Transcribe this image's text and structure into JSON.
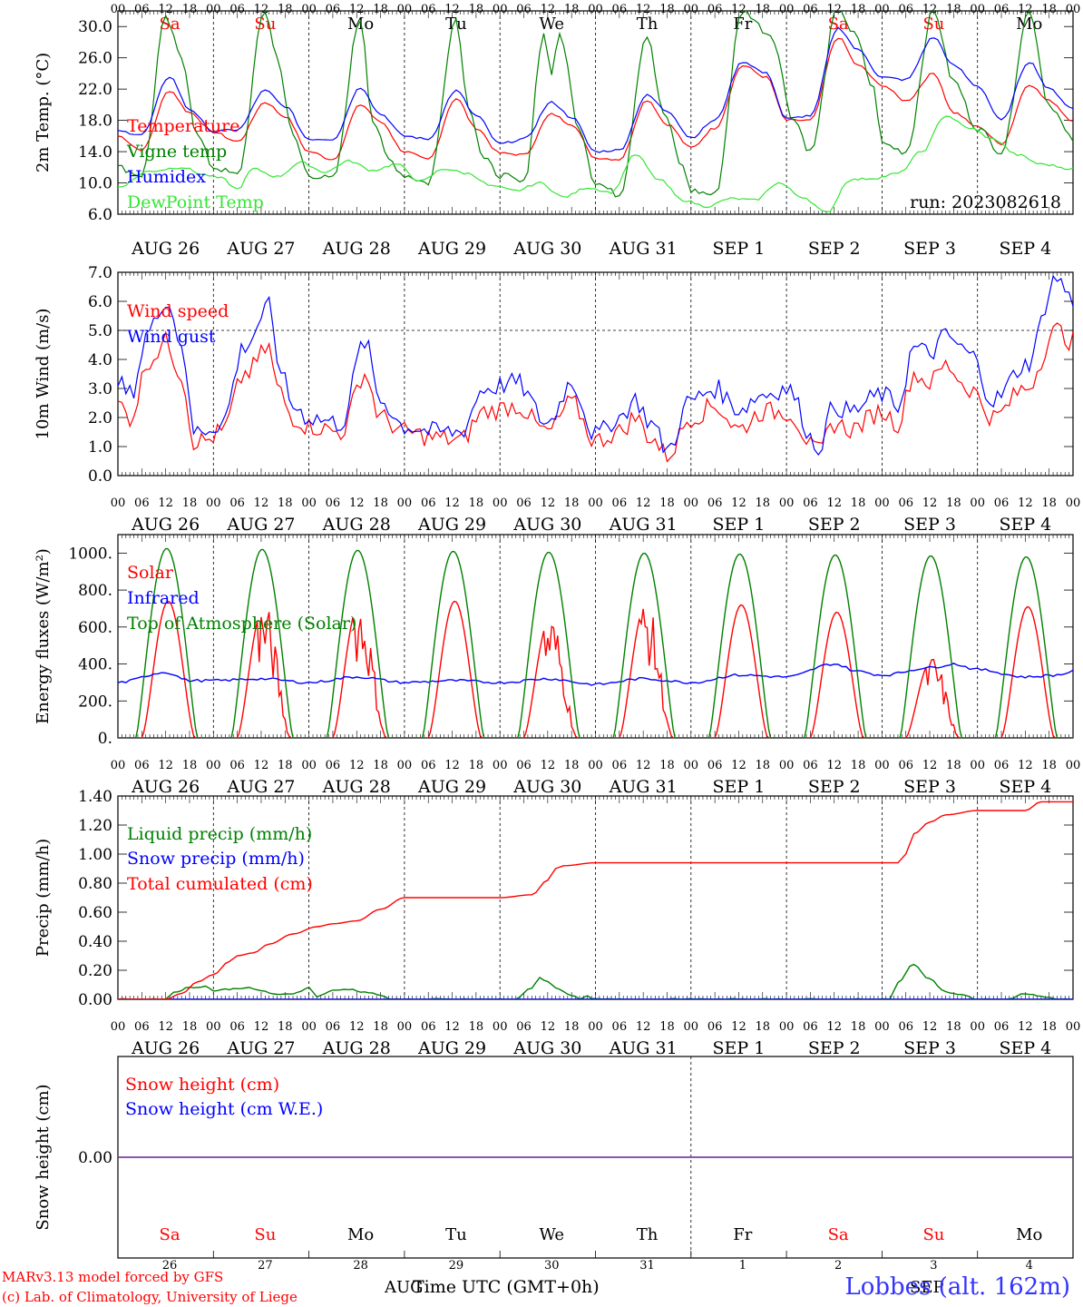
{
  "run_label": "run: 2023082618",
  "footer": {
    "model_line": "MARv3.13 model forced by GFS",
    "copyright_line": "(c) Lab. of Climatology, University of Liege",
    "xlabel": "Time UTC (GMT+0h)",
    "station": "Lobbes (alt. 162m)",
    "month_left": "AUG",
    "month_right": "SEP"
  },
  "colors": {
    "red": "#ff0000",
    "blue": "#0000ff",
    "green": "#008000",
    "lightgreen": "#33e633",
    "purple": "#7f3f9f"
  },
  "days": [
    {
      "weekday": "Sa",
      "weekend": true,
      "month": "AUG",
      "day": "26"
    },
    {
      "weekday": "Su",
      "weekend": true,
      "month": "AUG",
      "day": "27"
    },
    {
      "weekday": "Mo",
      "weekend": false,
      "month": "AUG",
      "day": "28"
    },
    {
      "weekday": "Tu",
      "weekend": false,
      "month": "AUG",
      "day": "29"
    },
    {
      "weekday": "We",
      "weekend": false,
      "month": "AUG",
      "day": "30"
    },
    {
      "weekday": "Th",
      "weekend": false,
      "month": "AUG",
      "day": "31"
    },
    {
      "weekday": "Fr",
      "weekend": false,
      "month": "SEP",
      "day": "1"
    },
    {
      "weekday": "Sa",
      "weekend": true,
      "month": "SEP",
      "day": "2"
    },
    {
      "weekday": "Su",
      "weekend": true,
      "month": "SEP",
      "day": "3"
    },
    {
      "weekday": "Mo",
      "weekend": false,
      "month": "SEP",
      "day": "4"
    }
  ],
  "hour_ticks": [
    "00",
    "06",
    "12",
    "18"
  ],
  "chart_data": [
    {
      "type": "line",
      "id": "temp",
      "ylabel": "2m Temp. (°C)",
      "ylim": [
        6,
        32
      ],
      "yticks": [
        "6.0",
        "10.0",
        "14.0",
        "18.0",
        "22.0",
        "26.0",
        "30.0"
      ],
      "x_unit": "hours since Aug 26 00 UTC",
      "series": [
        {
          "name": "Temperature",
          "color": "#ff0000",
          "x": [
            0,
            6,
            13,
            18,
            24,
            30,
            37,
            42,
            48,
            54,
            61,
            66,
            72,
            78,
            85,
            90,
            96,
            102,
            109,
            114,
            120,
            126,
            133,
            138,
            144,
            150,
            157,
            163,
            168,
            174,
            181,
            186,
            192,
            198,
            205,
            210,
            216,
            222,
            229,
            234,
            240
          ],
          "y": [
            16,
            14.2,
            21.8,
            19,
            16.5,
            15.3,
            20.3,
            18.5,
            14,
            13,
            20,
            17.8,
            14,
            13,
            20.8,
            17,
            13.8,
            13.6,
            18.8,
            17.5,
            13.2,
            13,
            20.6,
            17.5,
            14.5,
            17,
            25,
            23.5,
            18,
            18,
            28.6,
            25,
            22.5,
            20.5,
            24,
            19,
            17.2,
            15,
            22.6,
            20.5,
            18
          ]
        },
        {
          "name": "Vigne temp",
          "color": "#008000",
          "x": [
            0,
            6,
            12,
            16,
            20,
            24,
            30,
            37,
            40,
            44,
            48,
            54,
            61,
            64,
            68,
            72,
            78,
            85,
            88,
            92,
            96,
            102,
            107,
            109,
            111,
            116,
            120,
            126,
            133,
            137,
            142,
            144,
            150,
            157,
            164,
            170,
            174,
            181,
            185,
            190,
            192,
            198,
            205,
            210,
            216,
            222,
            229,
            234,
            240
          ],
          "y": [
            12,
            11,
            31,
            26,
            16,
            12,
            11,
            32,
            26,
            16,
            11,
            10.5,
            31,
            18,
            13,
            11,
            10,
            31,
            20,
            13,
            11,
            10,
            29,
            24,
            29,
            17,
            10,
            8.5,
            29,
            19,
            12,
            9,
            8.5,
            32,
            29,
            18,
            14,
            32.5,
            29,
            22,
            15,
            14,
            32,
            23,
            17,
            14,
            32,
            20,
            15.5
          ]
        },
        {
          "name": "Humidex",
          "color": "#0000ff",
          "x": [
            0,
            6,
            13,
            18,
            24,
            30,
            37,
            42,
            48,
            54,
            61,
            66,
            72,
            78,
            85,
            90,
            96,
            102,
            109,
            114,
            120,
            126,
            133,
            138,
            144,
            150,
            157,
            163,
            168,
            174,
            181,
            186,
            192,
            198,
            205,
            210,
            216,
            222,
            229,
            234,
            240
          ],
          "y": [
            16.6,
            16.2,
            23.6,
            19.4,
            16.6,
            16.8,
            21.8,
            19.8,
            15.6,
            15.6,
            22.2,
            18.8,
            16,
            15.6,
            21.8,
            18.6,
            15,
            15.6,
            20.3,
            18.4,
            14,
            14.2,
            21.2,
            19.2,
            15.8,
            18,
            25.5,
            24,
            18.2,
            18.6,
            29.8,
            27,
            23.5,
            23.2,
            28.6,
            25,
            22.4,
            18,
            25.5,
            22,
            19.5
          ]
        },
        {
          "name": "DewPoint Temp",
          "color": "#33e633",
          "x": [
            0,
            8,
            16,
            22,
            26,
            30,
            34,
            40,
            46,
            52,
            58,
            64,
            70,
            76,
            82,
            88,
            94,
            100,
            106,
            112,
            118,
            124,
            130,
            136,
            142,
            148,
            154,
            160,
            166,
            172,
            178,
            184,
            190,
            196,
            202,
            208,
            214,
            220,
            226,
            232,
            240
          ],
          "y": [
            9.5,
            11.5,
            12,
            11,
            10.6,
            9.2,
            11.8,
            10.8,
            12.6,
            11.4,
            12.8,
            11.6,
            12.4,
            10.2,
            11.8,
            11.2,
            9.6,
            9,
            10,
            8.2,
            9.4,
            8.8,
            13.6,
            10.4,
            7.8,
            7,
            8,
            7.8,
            10,
            8.2,
            6.2,
            10.4,
            10.6,
            11.2,
            14,
            18.6,
            17,
            15.6,
            13.6,
            12.4,
            11.8
          ]
        }
      ]
    },
    {
      "type": "line",
      "id": "wind",
      "ylabel": "10m Wind (m/s)",
      "ylim": [
        0,
        7
      ],
      "yticks": [
        "0.0",
        "1.0",
        "2.0",
        "3.0",
        "4.0",
        "5.0",
        "6.0",
        "7.0"
      ],
      "reference_line": 5.0,
      "series": [
        {
          "name": "Wind speed",
          "color": "#ff0000",
          "x": [
            0,
            3,
            8,
            12,
            16,
            19,
            22,
            26,
            32,
            38,
            40,
            44,
            48,
            56,
            62,
            66,
            72,
            80,
            86,
            92,
            100,
            108,
            114,
            120,
            126,
            130,
            134,
            138,
            144,
            150,
            156,
            162,
            168,
            176,
            180,
            184,
            192,
            196,
            200,
            204,
            208,
            214,
            220,
            228,
            236,
            240
          ],
          "y": [
            2.5,
            2,
            4,
            4.6,
            3.5,
            1.2,
            1.2,
            1.5,
            3.5,
            4.4,
            3,
            2,
            1.7,
            1.5,
            3.5,
            2,
            1.5,
            1.3,
            1.2,
            2.2,
            2.4,
            1.5,
            2.5,
            1.2,
            1.5,
            2,
            1.3,
            0.7,
            2,
            2.4,
            1.6,
            2.2,
            2.2,
            0.8,
            1.8,
            1.6,
            2.2,
            1.8,
            3.5,
            3.2,
            3.8,
            3,
            2,
            3,
            5,
            4.6
          ]
        },
        {
          "name": "Wind gust",
          "color": "#0000ff",
          "x": [
            0,
            3,
            8,
            12,
            16,
            19,
            22,
            26,
            32,
            38,
            40,
            44,
            48,
            56,
            62,
            66,
            72,
            80,
            86,
            92,
            100,
            108,
            114,
            120,
            126,
            130,
            134,
            138,
            144,
            150,
            156,
            162,
            168,
            176,
            180,
            184,
            192,
            196,
            200,
            204,
            208,
            214,
            220,
            228,
            236,
            240
          ],
          "y": [
            3.2,
            2.8,
            5,
            6.1,
            4.6,
            1.5,
            1.6,
            1.8,
            4.5,
            5.8,
            4,
            2.4,
            2,
            1.8,
            4.6,
            2.6,
            1.7,
            1.5,
            1.5,
            3,
            3.2,
            1.8,
            3.2,
            1.4,
            2,
            2.6,
            1.8,
            0.9,
            2.6,
            3,
            2.3,
            2.8,
            3,
            1,
            2.4,
            2.2,
            2.8,
            2.4,
            4.4,
            4.2,
            4.8,
            4.2,
            2.6,
            3.8,
            6.8,
            6
          ]
        }
      ]
    },
    {
      "type": "line",
      "id": "energy",
      "ylabel": "Energy fluxes (W/m²)",
      "ylim": [
        0,
        1100
      ],
      "yticks": [
        "0.",
        "200.",
        "400.",
        "600.",
        "800.",
        "1000."
      ],
      "series": [
        {
          "name": "Solar",
          "color": "#ff0000",
          "day_peaks": [
            740,
            710,
            730,
            740,
            650,
            720,
            720,
            680,
            430,
            710
          ]
        },
        {
          "name": "Infrared",
          "color": "#0000ff",
          "x": [
            0,
            12,
            18,
            24,
            36,
            48,
            60,
            72,
            84,
            96,
            108,
            120,
            132,
            144,
            156,
            168,
            180,
            186,
            192,
            204,
            210,
            216,
            228,
            236,
            240
          ],
          "y": [
            300,
            355,
            310,
            310,
            320,
            300,
            330,
            300,
            310,
            300,
            320,
            290,
            320,
            300,
            340,
            330,
            400,
            360,
            340,
            380,
            400,
            370,
            330,
            340,
            360
          ]
        },
        {
          "name": "Top of Atmosphere (Solar)",
          "color": "#008000",
          "day_peaks": [
            1025,
            1020,
            1015,
            1010,
            1005,
            1000,
            995,
            990,
            985,
            980
          ]
        }
      ]
    },
    {
      "type": "line",
      "id": "precip",
      "ylabel": "Precip (mm/h)",
      "ylim": [
        0,
        1.4
      ],
      "yticks": [
        "0.00",
        "0.20",
        "0.40",
        "0.60",
        "0.80",
        "1.00",
        "1.20",
        "1.40"
      ],
      "series": [
        {
          "name": "Liquid precip (mm/h)",
          "color": "#008000",
          "x": [
            0,
            12,
            14,
            18,
            22,
            24,
            28,
            32,
            36,
            40,
            44,
            48,
            50,
            54,
            58,
            62,
            66,
            68,
            72,
            76,
            80,
            84,
            88,
            94,
            100,
            104,
            106,
            108,
            110,
            114,
            116,
            118,
            120,
            192,
            194,
            196,
            200,
            204,
            208,
            212,
            216,
            220,
            224,
            228,
            232,
            236,
            240
          ],
          "y": [
            0,
            0,
            0.05,
            0.08,
            0.09,
            0.06,
            0.07,
            0.08,
            0.06,
            0.03,
            0.04,
            0.08,
            0.02,
            0.06,
            0.07,
            0.05,
            0.03,
            0,
            0,
            0,
            0,
            0,
            0,
            0,
            0,
            0.08,
            0.15,
            0.12,
            0.08,
            0.03,
            0,
            0.02,
            0,
            0,
            0,
            0.12,
            0.24,
            0.14,
            0.05,
            0.03,
            0,
            0,
            0,
            0.04,
            0.02,
            0,
            0
          ]
        },
        {
          "name": "Snow precip (mm/h)",
          "color": "#0000ff",
          "x": [
            0,
            240
          ],
          "y": [
            0,
            0
          ]
        },
        {
          "name": "Total cumulated (cm)",
          "color": "#ff0000",
          "x": [
            0,
            12,
            16,
            20,
            24,
            28,
            30,
            34,
            38,
            44,
            50,
            54,
            60,
            66,
            72,
            78,
            96,
            104,
            108,
            110,
            112,
            120,
            192,
            196,
            198,
            200,
            204,
            208,
            216,
            228,
            232,
            240
          ],
          "y": [
            0,
            0,
            0.04,
            0.12,
            0.17,
            0.26,
            0.3,
            0.32,
            0.38,
            0.45,
            0.5,
            0.52,
            0.54,
            0.62,
            0.7,
            0.7,
            0.7,
            0.72,
            0.82,
            0.9,
            0.92,
            0.94,
            0.94,
            0.94,
            1.0,
            1.14,
            1.22,
            1.27,
            1.3,
            1.3,
            1.36,
            1.36
          ]
        }
      ]
    },
    {
      "type": "line",
      "id": "snow",
      "ylabel": "Snow height (cm)",
      "ylim": [
        -1,
        1
      ],
      "yticks": [
        "0.00"
      ],
      "series": [
        {
          "name": "Snow height (cm)",
          "color": "#ff0000",
          "x": [
            0,
            240
          ],
          "y": [
            0,
            0
          ]
        },
        {
          "name": "Snow height (cm W.E.)",
          "color": "#0000ff",
          "x": [
            0,
            240
          ],
          "y": [
            0,
            0
          ]
        }
      ]
    }
  ]
}
